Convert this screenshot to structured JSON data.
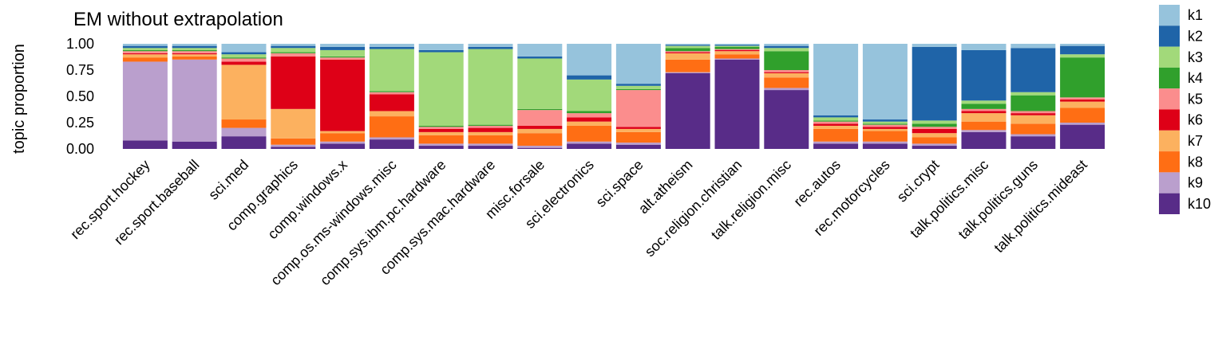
{
  "chart_data": {
    "type": "bar",
    "title": "EM without extrapolation",
    "ylabel": "topic proportion",
    "xlabel": "",
    "ylim": [
      0,
      1
    ],
    "yticks": [
      "0.00",
      "0.25",
      "0.50",
      "0.75",
      "1.00"
    ],
    "categories": [
      "rec.sport.hockey",
      "rec.sport.baseball",
      "sci.med",
      "comp.graphics",
      "comp.windows.x",
      "comp.os.ms-windows.misc",
      "comp.sys.ibm.pc.hardware",
      "comp.sys.mac.hardware",
      "misc.forsale",
      "sci.electronics",
      "sci.space",
      "alt.atheism",
      "soc.religion.christian",
      "talk.religion.misc",
      "rec.autos",
      "rec.motorcycles",
      "sci.crypt",
      "talk.politics.misc",
      "talk.politics.guns",
      "talk.politics.mideast"
    ],
    "legend": {
      "position": "right",
      "labels": [
        "k1",
        "k2",
        "k3",
        "k4",
        "k5",
        "k6",
        "k7",
        "k8",
        "k9",
        "k10"
      ],
      "colors": [
        "#96C3DC",
        "#1F64A8",
        "#A2D97A",
        "#30A02C",
        "#FB8D8D",
        "#DE0017",
        "#FCB15F",
        "#FF6E14",
        "#BA9FCD",
        "#582C88"
      ]
    },
    "series": [
      {
        "name": "k1",
        "values": [
          0.02,
          0.02,
          0.08,
          0.02,
          0.03,
          0.03,
          0.06,
          0.03,
          0.12,
          0.3,
          0.38,
          0.01,
          0.01,
          0.02,
          0.68,
          0.72,
          0.03,
          0.06,
          0.04,
          0.02
        ]
      },
      {
        "name": "k2",
        "values": [
          0.02,
          0.02,
          0.02,
          0.02,
          0.03,
          0.02,
          0.02,
          0.02,
          0.02,
          0.04,
          0.02,
          0.01,
          0.01,
          0.02,
          0.02,
          0.02,
          0.7,
          0.48,
          0.42,
          0.08
        ]
      },
      {
        "name": "k3",
        "values": [
          0.02,
          0.02,
          0.03,
          0.04,
          0.06,
          0.4,
          0.7,
          0.72,
          0.48,
          0.3,
          0.03,
          0.02,
          0.01,
          0.03,
          0.03,
          0.02,
          0.03,
          0.03,
          0.03,
          0.03
        ]
      },
      {
        "name": "k4",
        "values": [
          0.01,
          0.01,
          0.01,
          0.01,
          0.01,
          0.01,
          0.01,
          0.01,
          0.01,
          0.02,
          0.01,
          0.03,
          0.02,
          0.18,
          0.01,
          0.01,
          0.03,
          0.05,
          0.15,
          0.38
        ]
      },
      {
        "name": "k5",
        "values": [
          0.02,
          0.02,
          0.03,
          0.03,
          0.02,
          0.02,
          0.02,
          0.02,
          0.15,
          0.04,
          0.35,
          0.01,
          0.01,
          0.02,
          0.02,
          0.02,
          0.02,
          0.02,
          0.02,
          0.02
        ]
      },
      {
        "name": "k6",
        "values": [
          0.01,
          0.01,
          0.03,
          0.5,
          0.68,
          0.16,
          0.03,
          0.04,
          0.03,
          0.04,
          0.02,
          0.01,
          0.01,
          0.01,
          0.02,
          0.02,
          0.04,
          0.02,
          0.02,
          0.02
        ]
      },
      {
        "name": "k7",
        "values": [
          0.03,
          0.02,
          0.52,
          0.28,
          0.02,
          0.05,
          0.03,
          0.03,
          0.04,
          0.04,
          0.03,
          0.06,
          0.03,
          0.04,
          0.03,
          0.02,
          0.04,
          0.08,
          0.08,
          0.06
        ]
      },
      {
        "name": "k8",
        "values": [
          0.04,
          0.03,
          0.08,
          0.06,
          0.08,
          0.2,
          0.08,
          0.08,
          0.12,
          0.15,
          0.1,
          0.12,
          0.04,
          0.1,
          0.12,
          0.1,
          0.06,
          0.08,
          0.1,
          0.14
        ]
      },
      {
        "name": "k9",
        "values": [
          0.75,
          0.78,
          0.08,
          0.02,
          0.02,
          0.02,
          0.02,
          0.02,
          0.02,
          0.02,
          0.02,
          0.01,
          0.01,
          0.02,
          0.02,
          0.02,
          0.02,
          0.02,
          0.02,
          0.02
        ]
      },
      {
        "name": "k10",
        "values": [
          0.08,
          0.07,
          0.12,
          0.02,
          0.05,
          0.09,
          0.03,
          0.03,
          0.01,
          0.05,
          0.04,
          0.72,
          0.85,
          0.56,
          0.05,
          0.05,
          0.03,
          0.16,
          0.12,
          0.23
        ]
      }
    ]
  }
}
